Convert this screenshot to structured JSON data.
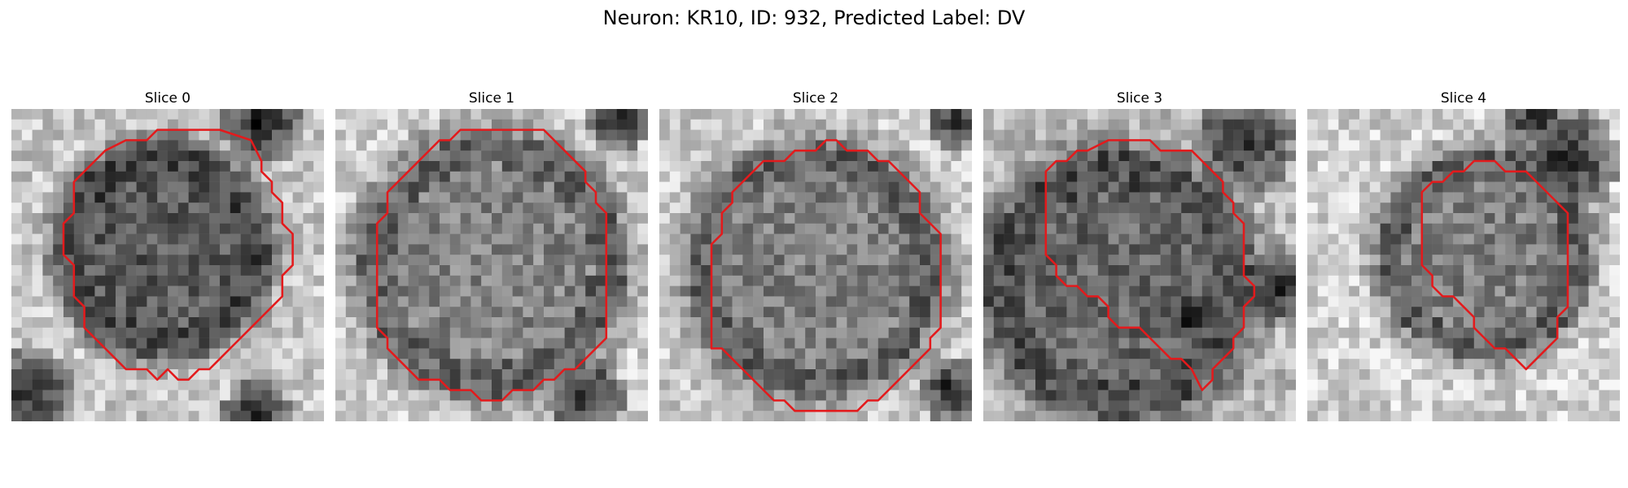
{
  "figure": {
    "title": "Neuron: KR10, ID: 932, Predicted Label: DV"
  },
  "colors": {
    "contour": "#e31a1c",
    "image_cmap": "gray"
  },
  "grid_size": 30,
  "slices": [
    {
      "label": "Slice 0",
      "seed": 11,
      "center": [
        14.5,
        13.5
      ],
      "radius": 9.5,
      "core": 0.35,
      "bg": 0.78,
      "dark_spots": [
        [
          24,
          1.5,
          4
        ],
        [
          23.5,
          29.5,
          3.5
        ],
        [
          2,
          27,
          4
        ]
      ],
      "contour": [
        [
          14,
          2
        ],
        [
          20,
          2
        ],
        [
          23,
          3
        ],
        [
          24,
          5
        ],
        [
          24,
          6
        ],
        [
          25,
          7
        ],
        [
          25,
          8
        ],
        [
          26,
          9
        ],
        [
          26,
          11
        ],
        [
          27,
          12
        ],
        [
          27,
          15
        ],
        [
          26,
          16
        ],
        [
          26,
          18
        ],
        [
          25,
          19
        ],
        [
          24,
          20
        ],
        [
          23,
          21
        ],
        [
          22,
          22
        ],
        [
          21,
          23
        ],
        [
          20,
          24
        ],
        [
          19,
          25
        ],
        [
          18,
          25
        ],
        [
          17,
          26
        ],
        [
          16,
          26
        ],
        [
          15,
          25
        ],
        [
          14,
          26
        ],
        [
          13,
          25
        ],
        [
          11,
          25
        ],
        [
          10,
          24
        ],
        [
          9,
          23
        ],
        [
          8,
          22
        ],
        [
          7,
          21
        ],
        [
          7,
          19
        ],
        [
          6,
          18
        ],
        [
          6,
          15
        ],
        [
          5,
          14
        ],
        [
          5,
          11
        ],
        [
          6,
          10
        ],
        [
          6,
          7
        ],
        [
          7,
          6
        ],
        [
          8,
          5
        ],
        [
          9,
          4
        ],
        [
          11,
          3
        ],
        [
          13,
          3
        ]
      ]
    },
    {
      "label": "Slice 1",
      "seed": 23,
      "center": [
        15,
        15
      ],
      "radius": 12,
      "core": 0.52,
      "bg": 0.82,
      "dark_spots": [
        [
          24,
          27.5,
          4
        ],
        [
          27,
          1,
          3
        ]
      ],
      "contour": [
        [
          12,
          2
        ],
        [
          20,
          2
        ],
        [
          24,
          6
        ],
        [
          24,
          7
        ],
        [
          25,
          8
        ],
        [
          25,
          9
        ],
        [
          26,
          10
        ],
        [
          26,
          22
        ],
        [
          25,
          23
        ],
        [
          24,
          24
        ],
        [
          23,
          25
        ],
        [
          22,
          25
        ],
        [
          21,
          26
        ],
        [
          20,
          26
        ],
        [
          19,
          27
        ],
        [
          17,
          27
        ],
        [
          16,
          28
        ],
        [
          14,
          28
        ],
        [
          13,
          27
        ],
        [
          11,
          27
        ],
        [
          10,
          26
        ],
        [
          8,
          26
        ],
        [
          7,
          25
        ],
        [
          6,
          24
        ],
        [
          5,
          23
        ],
        [
          5,
          22
        ],
        [
          4,
          21
        ],
        [
          4,
          11
        ],
        [
          5,
          10
        ],
        [
          5,
          8
        ],
        [
          6,
          7
        ],
        [
          7,
          6
        ],
        [
          10,
          3
        ],
        [
          11,
          3
        ]
      ]
    },
    {
      "label": "Slice 2",
      "seed": 37,
      "center": [
        15,
        15.5
      ],
      "radius": 11.5,
      "core": 0.5,
      "bg": 0.8,
      "dark_spots": [
        [
          28.5,
          1,
          3
        ],
        [
          28,
          27,
          3
        ]
      ],
      "contour": [
        [
          16,
          3
        ],
        [
          17,
          3
        ],
        [
          18,
          4
        ],
        [
          20,
          4
        ],
        [
          21,
          5
        ],
        [
          22,
          5
        ],
        [
          25,
          8
        ],
        [
          25,
          10
        ],
        [
          26,
          11
        ],
        [
          27,
          12
        ],
        [
          27,
          21
        ],
        [
          26,
          22
        ],
        [
          26,
          23
        ],
        [
          25,
          24
        ],
        [
          24,
          25
        ],
        [
          23,
          26
        ],
        [
          22,
          27
        ],
        [
          21,
          28
        ],
        [
          20,
          28
        ],
        [
          19,
          29
        ],
        [
          13,
          29
        ],
        [
          12,
          28
        ],
        [
          11,
          28
        ],
        [
          10,
          27
        ],
        [
          9,
          26
        ],
        [
          8,
          25
        ],
        [
          7,
          24
        ],
        [
          6,
          23
        ],
        [
          5,
          23
        ],
        [
          5,
          22
        ],
        [
          5,
          13
        ],
        [
          6,
          12
        ],
        [
          6,
          10
        ],
        [
          7,
          9
        ],
        [
          7,
          8
        ],
        [
          8,
          7
        ],
        [
          9,
          6
        ],
        [
          10,
          5
        ],
        [
          12,
          5
        ],
        [
          13,
          4
        ],
        [
          15,
          4
        ]
      ]
    },
    {
      "label": "Slice 3",
      "seed": 51,
      "center": [
        13,
        17
      ],
      "radius": 12,
      "core": 0.4,
      "bg": 0.72,
      "dark_spots": [
        [
          25,
          3,
          5
        ],
        [
          28,
          17,
          4
        ],
        [
          20,
          20,
          4
        ]
      ],
      "contour": [
        [
          12,
          3
        ],
        [
          16,
          3
        ],
        [
          17,
          4
        ],
        [
          20,
          4
        ],
        [
          21,
          5
        ],
        [
          22,
          6
        ],
        [
          23,
          7
        ],
        [
          23,
          8
        ],
        [
          24,
          9
        ],
        [
          24,
          10
        ],
        [
          25,
          11
        ],
        [
          25,
          16
        ],
        [
          26,
          17
        ],
        [
          26,
          18
        ],
        [
          25,
          19
        ],
        [
          25,
          21
        ],
        [
          24,
          22
        ],
        [
          24,
          23
        ],
        [
          23,
          24
        ],
        [
          22,
          25
        ],
        [
          22,
          26
        ],
        [
          21,
          27
        ],
        [
          20,
          25
        ],
        [
          19,
          24
        ],
        [
          18,
          24
        ],
        [
          17,
          23
        ],
        [
          16,
          22
        ],
        [
          15,
          21
        ],
        [
          13,
          21
        ],
        [
          12,
          20
        ],
        [
          12,
          19
        ],
        [
          11,
          18
        ],
        [
          10,
          18
        ],
        [
          9,
          17
        ],
        [
          8,
          17
        ],
        [
          7,
          16
        ],
        [
          7,
          15
        ],
        [
          6,
          14
        ],
        [
          6,
          6
        ],
        [
          7,
          5
        ],
        [
          8,
          5
        ],
        [
          9,
          4
        ],
        [
          10,
          4
        ]
      ]
    },
    {
      "label": "Slice 4",
      "seed": 67,
      "center": [
        17,
        14
      ],
      "radius": 9.5,
      "core": 0.5,
      "bg": 0.82,
      "dark_spots": [
        [
          25,
          5,
          5
        ],
        [
          22,
          1,
          3
        ]
      ],
      "contour": [
        [
          16,
          5
        ],
        [
          18,
          5
        ],
        [
          19,
          6
        ],
        [
          21,
          6
        ],
        [
          22,
          7
        ],
        [
          24,
          9
        ],
        [
          25,
          10
        ],
        [
          25,
          19
        ],
        [
          24,
          20
        ],
        [
          24,
          22
        ],
        [
          22,
          24
        ],
        [
          21,
          25
        ],
        [
          20,
          24
        ],
        [
          19,
          23
        ],
        [
          18,
          23
        ],
        [
          17,
          22
        ],
        [
          16,
          21
        ],
        [
          16,
          20
        ],
        [
          15,
          19
        ],
        [
          14,
          18
        ],
        [
          13,
          18
        ],
        [
          12,
          17
        ],
        [
          12,
          16
        ],
        [
          11,
          15
        ],
        [
          11,
          8
        ],
        [
          12,
          7
        ],
        [
          13,
          7
        ],
        [
          14,
          6
        ],
        [
          15,
          6
        ]
      ]
    }
  ]
}
